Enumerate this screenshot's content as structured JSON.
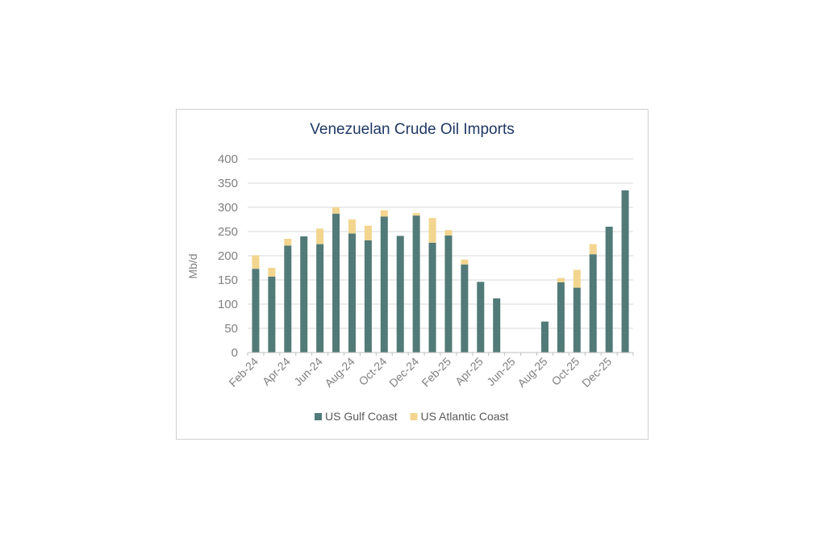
{
  "chart_data": {
    "type": "bar",
    "stacked": true,
    "title": "Venezuelan Crude Oil Imports",
    "xlabel": "",
    "ylabel": "Mb/d",
    "ylim": [
      0,
      400
    ],
    "yticks": [
      0,
      50,
      100,
      150,
      200,
      250,
      300,
      350,
      400
    ],
    "grid": true,
    "legend_position": "bottom",
    "categories": [
      "Feb-24",
      "Mar-24",
      "Apr-24",
      "May-24",
      "Jun-24",
      "Jul-24",
      "Aug-24",
      "Sep-24",
      "Oct-24",
      "Nov-24",
      "Dec-24",
      "Jan-25",
      "Feb-25",
      "Mar-25",
      "Apr-25",
      "May-25",
      "Jun-25",
      "Jul-25",
      "Aug-25",
      "Sep-25",
      "Oct-25",
      "Nov-25",
      "Dec-25",
      "Jan-26"
    ],
    "tick_labels": [
      "Feb-24",
      "Apr-24",
      "Jun-24",
      "Aug-24",
      "Oct-24",
      "Dec-24",
      "Feb-25",
      "Apr-25",
      "Jun-25",
      "Aug-25",
      "Oct-25",
      "Dec-25"
    ],
    "series": [
      {
        "name": "US Gulf Coast",
        "color": "#517a78",
        "values": [
          173,
          157,
          221,
          240,
          224,
          287,
          246,
          232,
          281,
          241,
          283,
          227,
          242,
          182,
          146,
          112,
          0,
          0,
          64,
          145,
          134,
          203,
          260,
          335
        ]
      },
      {
        "name": "US Atlantic Coast",
        "color": "#f2d58f",
        "values": [
          28,
          18,
          14,
          0,
          32,
          13,
          29,
          30,
          13,
          0,
          5,
          51,
          11,
          10,
          0,
          0,
          0,
          0,
          0,
          9,
          37,
          21,
          0,
          0
        ]
      }
    ]
  }
}
